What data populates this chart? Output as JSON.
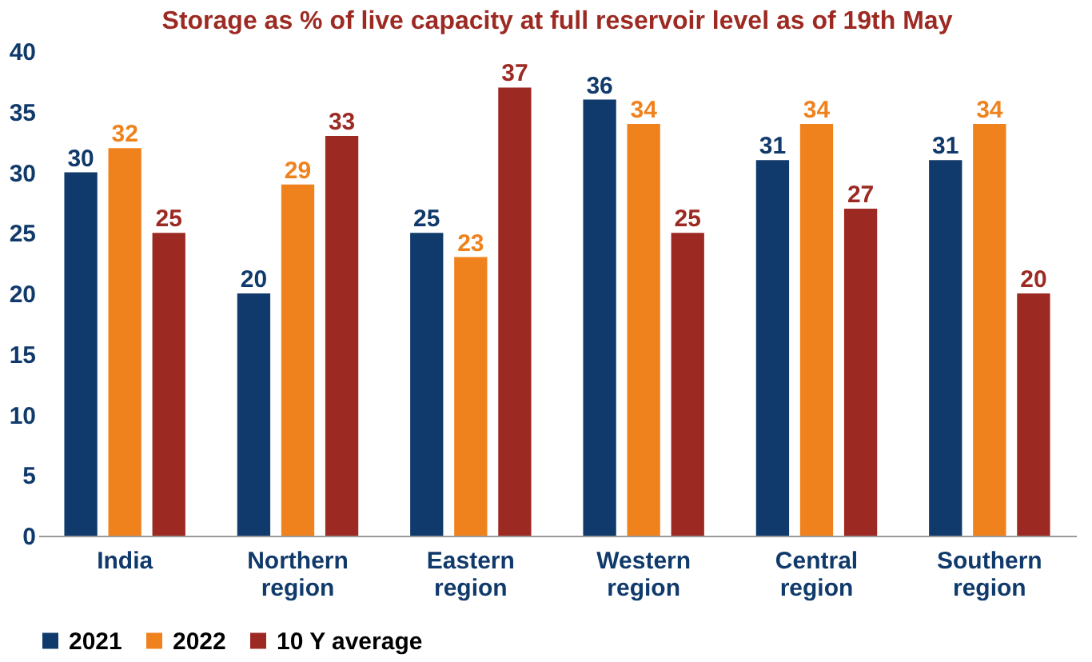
{
  "chart_data": {
    "type": "bar",
    "title": "Storage as % of live capacity at full reservoir level as of 19th May",
    "categories": [
      "India",
      "Northern region",
      "Eastern region",
      "Western region",
      "Central region",
      "Southern region"
    ],
    "series": [
      {
        "name": "2021",
        "color": "#103a6b",
        "values": [
          30,
          20,
          25,
          36,
          31,
          31
        ]
      },
      {
        "name": "2022",
        "color": "#f0821e",
        "values": [
          32,
          29,
          23,
          34,
          34,
          34
        ]
      },
      {
        "name": "10 Y average",
        "color": "#9c2a23",
        "values": [
          25,
          33,
          37,
          25,
          27,
          20
        ]
      }
    ],
    "ylim": [
      0,
      40
    ],
    "yticks": [
      0,
      5,
      10,
      15,
      20,
      25,
      30,
      35,
      40
    ],
    "grid": false,
    "legend": "bottom",
    "data_labels": true
  }
}
